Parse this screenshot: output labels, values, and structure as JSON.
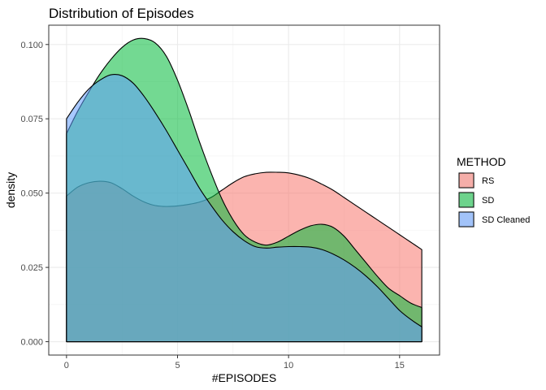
{
  "chart_data": {
    "type": "area",
    "title": "Distribution of Episodes",
    "xlabel": "#EPISODES",
    "ylabel": "density",
    "xlim": [
      -0.8,
      16.8
    ],
    "ylim": [
      -0.0045,
      0.1065
    ],
    "x_ticks": [
      0,
      5,
      10,
      15
    ],
    "x_tick_labels": [
      "0",
      "5",
      "10",
      "15"
    ],
    "y_ticks": [
      0,
      0.025,
      0.05,
      0.075,
      0.1
    ],
    "y_tick_labels": [
      "0.000",
      "0.025",
      "0.050",
      "0.075",
      "0.100"
    ],
    "grid": true,
    "legend": {
      "title": "METHOD",
      "position": "right",
      "entries": [
        "RS",
        "SD",
        "SD Cleaned"
      ]
    },
    "colors": {
      "RS": "#F8766D",
      "SD": "#00BA38",
      "SD Cleaned": "#619CFF"
    },
    "series": [
      {
        "name": "RS",
        "x": [
          0,
          0.5,
          1,
          1.5,
          2,
          2.5,
          3,
          3.5,
          4,
          4.5,
          5,
          5.5,
          6,
          6.5,
          7,
          7.5,
          8,
          8.5,
          9,
          9.5,
          10,
          10.5,
          11,
          11.5,
          12,
          12.5,
          13,
          13.5,
          14,
          14.5,
          15,
          15.5,
          16
        ],
        "y": [
          0.049,
          0.052,
          0.0535,
          0.054,
          0.0535,
          0.0515,
          0.049,
          0.047,
          0.0458,
          0.0455,
          0.0457,
          0.0462,
          0.047,
          0.0485,
          0.051,
          0.0535,
          0.0555,
          0.0565,
          0.057,
          0.057,
          0.0568,
          0.056,
          0.0548,
          0.053,
          0.051,
          0.0485,
          0.046,
          0.0435,
          0.041,
          0.0385,
          0.036,
          0.0335,
          0.031
        ]
      },
      {
        "name": "SD",
        "x": [
          0,
          0.5,
          1,
          1.5,
          2,
          2.5,
          3,
          3.5,
          4,
          4.5,
          5,
          5.5,
          6,
          6.5,
          7,
          7.5,
          8,
          8.5,
          9,
          9.5,
          10,
          10.5,
          11,
          11.5,
          12,
          12.5,
          13,
          13.5,
          14,
          14.5,
          15,
          15.5,
          16
        ],
        "y": [
          0.07,
          0.0775,
          0.084,
          0.09,
          0.095,
          0.099,
          0.1015,
          0.102,
          0.1005,
          0.096,
          0.088,
          0.078,
          0.067,
          0.057,
          0.048,
          0.041,
          0.036,
          0.0335,
          0.0325,
          0.0335,
          0.0355,
          0.0375,
          0.039,
          0.0395,
          0.0385,
          0.0355,
          0.031,
          0.0265,
          0.022,
          0.018,
          0.0155,
          0.013,
          0.0115
        ]
      },
      {
        "name": "SD Cleaned",
        "x": [
          0,
          0.5,
          1,
          1.5,
          2,
          2.5,
          3,
          3.5,
          4,
          4.5,
          5,
          5.5,
          6,
          6.5,
          7,
          7.5,
          8,
          8.5,
          9,
          9.5,
          10,
          10.5,
          11,
          11.5,
          12,
          12.5,
          13,
          13.5,
          14,
          14.5,
          15,
          15.5,
          16
        ],
        "y": [
          0.075,
          0.0805,
          0.085,
          0.088,
          0.0898,
          0.0895,
          0.087,
          0.0825,
          0.077,
          0.071,
          0.0645,
          0.058,
          0.0515,
          0.046,
          0.041,
          0.037,
          0.034,
          0.032,
          0.0315,
          0.0318,
          0.032,
          0.032,
          0.0318,
          0.031,
          0.0295,
          0.0275,
          0.025,
          0.022,
          0.0185,
          0.0145,
          0.0105,
          0.0075,
          0.005
        ]
      }
    ]
  }
}
